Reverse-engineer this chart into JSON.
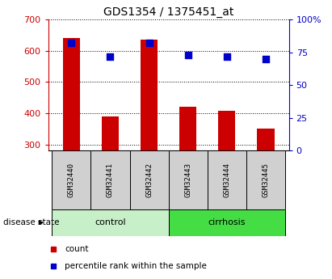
{
  "title": "GDS1354 / 1375451_at",
  "samples": [
    "GSM32440",
    "GSM32441",
    "GSM32442",
    "GSM32443",
    "GSM32444",
    "GSM32445"
  ],
  "count_values": [
    640,
    390,
    635,
    420,
    408,
    350
  ],
  "percentile_values": [
    82,
    72,
    82,
    73,
    72,
    70
  ],
  "ylim_left": [
    280,
    700
  ],
  "ylim_right": [
    0,
    100
  ],
  "yticks_left": [
    300,
    400,
    500,
    600,
    700
  ],
  "yticks_right": [
    0,
    25,
    50,
    75,
    100
  ],
  "bar_color": "#cc0000",
  "dot_color": "#0000cc",
  "group_control_color": "#c8f0c8",
  "group_cirrhosis_color": "#44dd44",
  "disease_state_label": "disease state",
  "legend_count_label": "count",
  "legend_percentile_label": "percentile rank within the sample",
  "grid_color": "black",
  "background_color": "#ffffff",
  "sample_box_color": "#d0d0d0",
  "left_axis_color": "#cc0000",
  "right_axis_color": "#0000cc",
  "title_fontsize": 10,
  "tick_fontsize": 8,
  "label_fontsize": 8,
  "bar_width": 0.45,
  "control_indices": [
    0,
    1,
    2
  ],
  "cirrhosis_indices": [
    3,
    4,
    5
  ]
}
